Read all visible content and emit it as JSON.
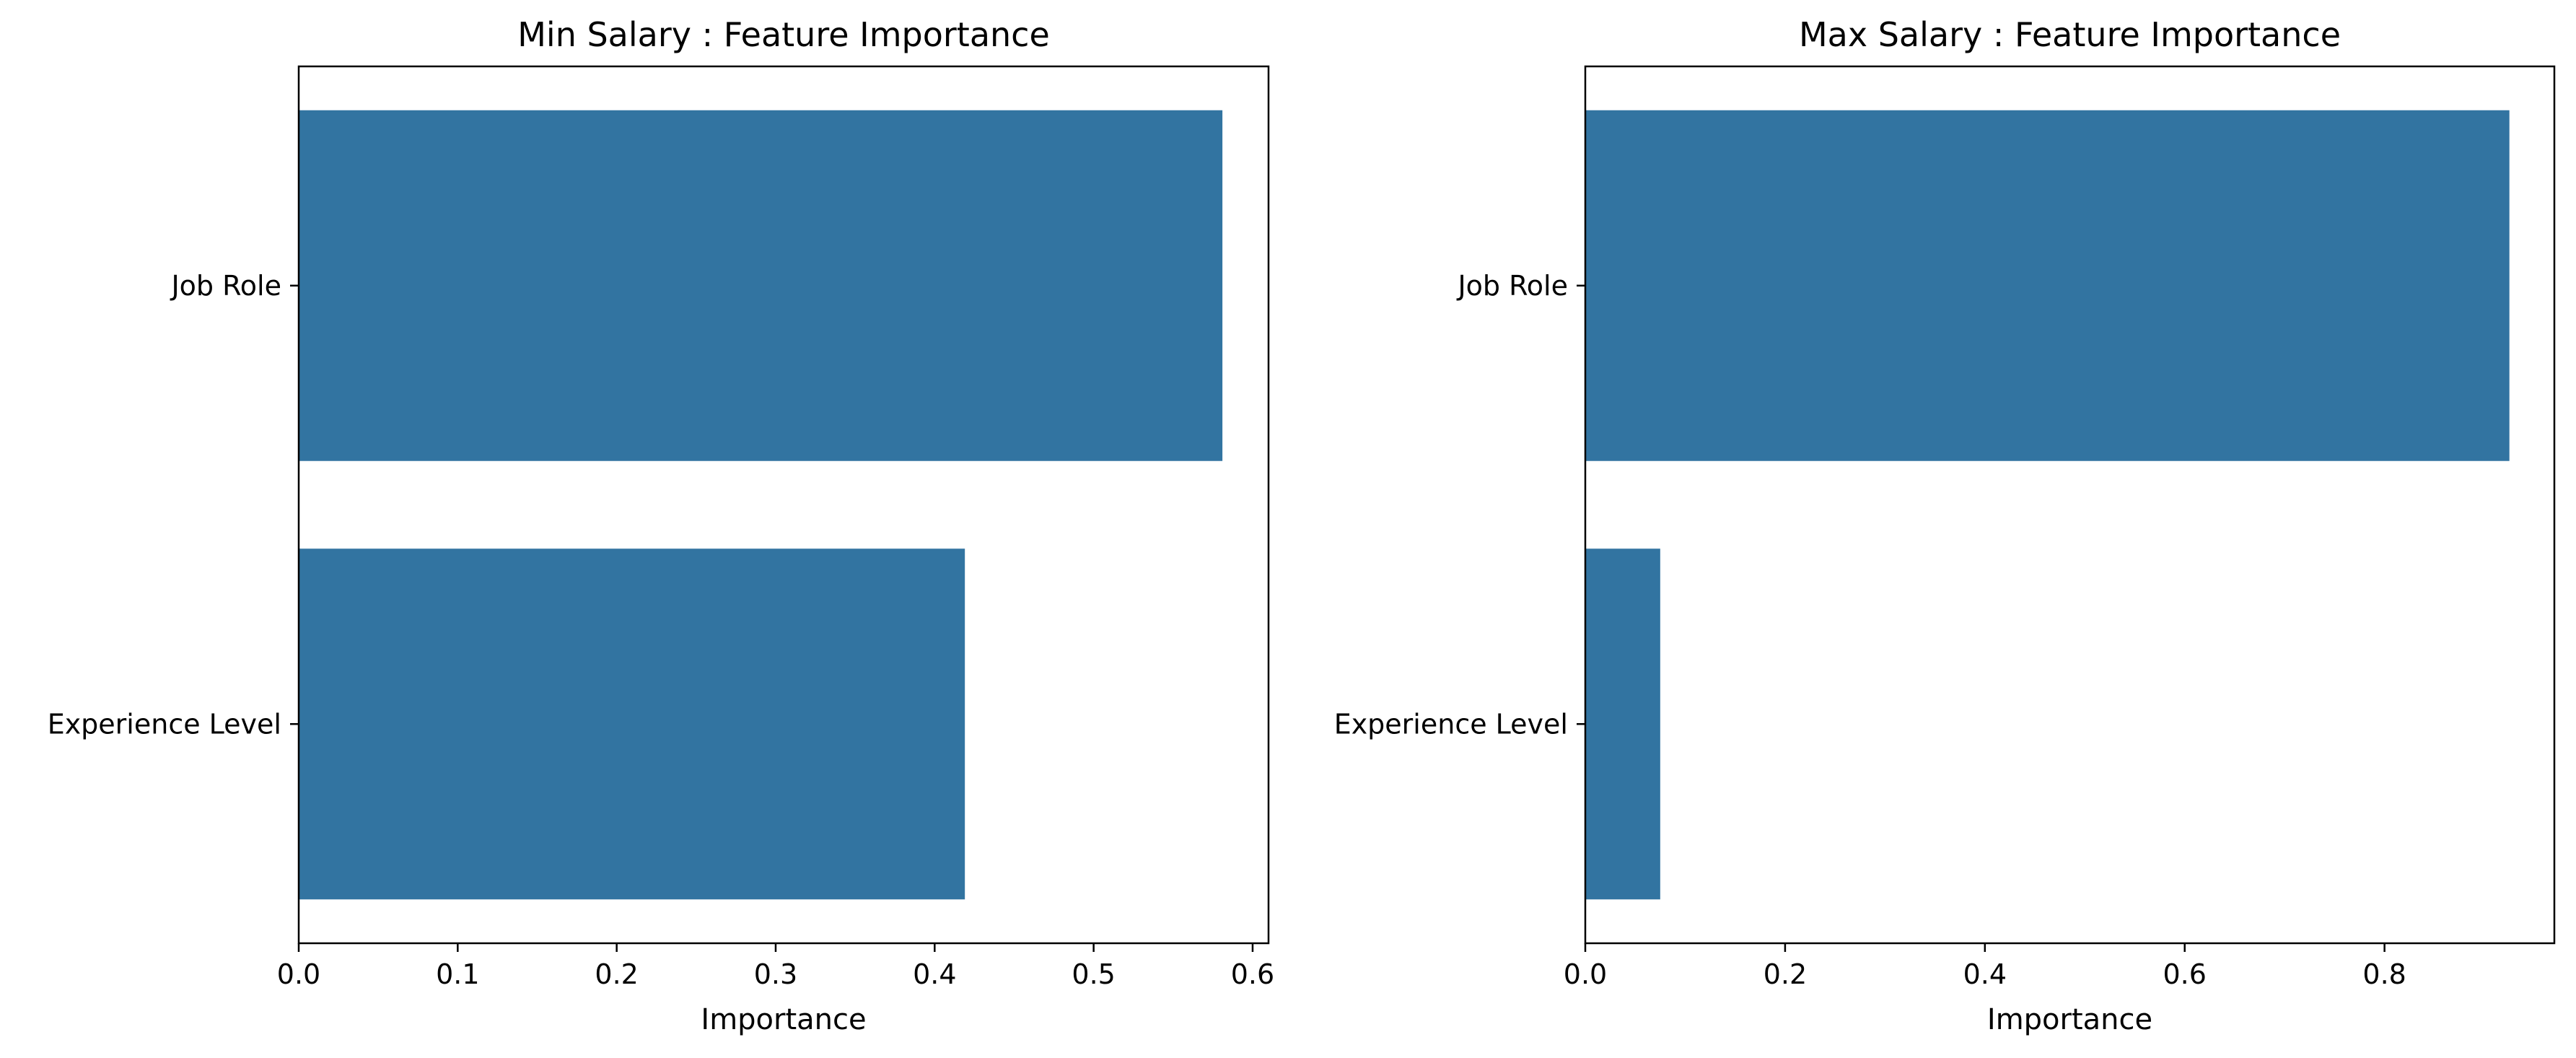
{
  "chart_data": [
    {
      "type": "bar",
      "orientation": "horizontal",
      "title": "Min Salary : Feature Importance",
      "xlabel": "Importance",
      "ylabel": "",
      "categories": [
        "Job Role",
        "Experience Level"
      ],
      "values": [
        0.581,
        0.419
      ],
      "xlim": [
        0,
        0.61
      ],
      "xticks": [
        0.0,
        0.1,
        0.2,
        0.3,
        0.4,
        0.5,
        0.6
      ],
      "xtick_labels": [
        "0.0",
        "0.1",
        "0.2",
        "0.3",
        "0.4",
        "0.5",
        "0.6"
      ],
      "grid": false,
      "legend": "none",
      "bar_color": "#3274a1"
    },
    {
      "type": "bar",
      "orientation": "horizontal",
      "title": "Max Salary : Feature Importance",
      "xlabel": "Importance",
      "ylabel": "",
      "categories": [
        "Job Role",
        "Experience Level"
      ],
      "values": [
        0.925,
        0.075
      ],
      "xlim": [
        0,
        0.97
      ],
      "xticks": [
        0.0,
        0.2,
        0.4,
        0.6,
        0.8
      ],
      "xtick_labels": [
        "0.0",
        "0.2",
        "0.4",
        "0.6",
        "0.8"
      ],
      "grid": false,
      "legend": "none",
      "bar_color": "#3274a1"
    }
  ]
}
